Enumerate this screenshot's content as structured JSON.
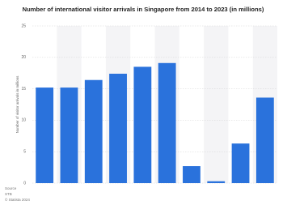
{
  "chart_data": {
    "type": "bar",
    "title": "Number of international visitor arrivals in Singapore from 2014 to 2023 (in millions)",
    "y_label": "Number of visitor arrivals in millions",
    "categories": [
      null,
      null,
      null,
      null,
      null,
      null,
      null,
      null,
      null,
      null
    ],
    "values": [
      15.2,
      15.2,
      16.4,
      17.4,
      18.5,
      19.1,
      2.7,
      0.3,
      6.3,
      13.6
    ],
    "color": "#2a72dc",
    "ylim": [
      0,
      25
    ],
    "yticks": [
      0,
      5,
      10,
      15,
      20,
      25
    ],
    "grid": true,
    "source_label": "Source",
    "source": "STB",
    "copyright": "© Statista 2024"
  }
}
